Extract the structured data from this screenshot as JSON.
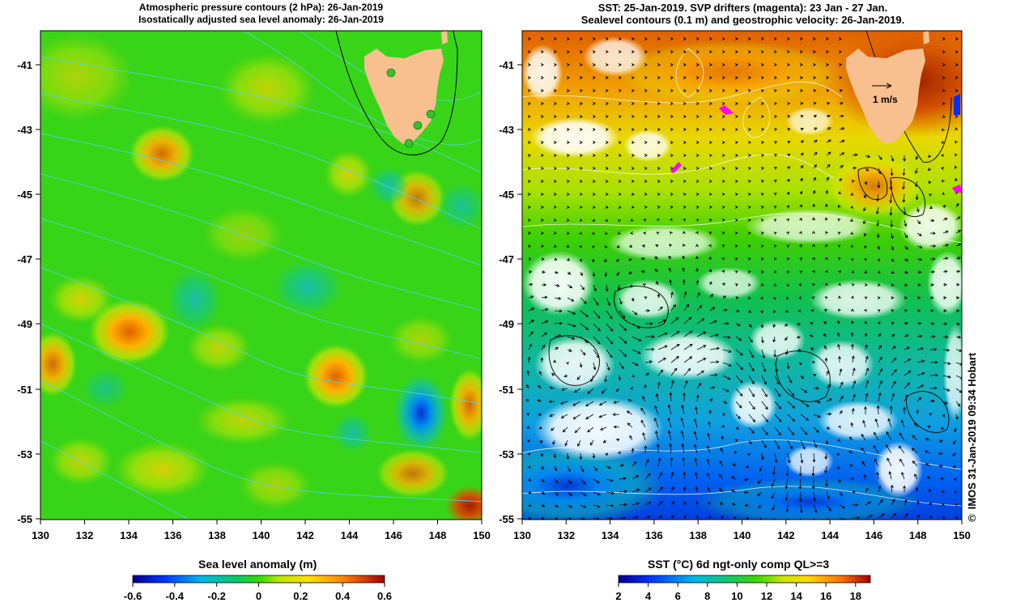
{
  "left_panel": {
    "title_line1": "Atmospheric pressure contours (2 hPa): 26-Jan-2019",
    "title_line2": "Isostatically adjusted sea level anomaly: 26-Jan-2019",
    "y_ticks": [
      "-41",
      "-43",
      "-45",
      "-47",
      "-49",
      "-51",
      "-53",
      "-55"
    ],
    "x_ticks": [
      "130",
      "132",
      "134",
      "136",
      "138",
      "140",
      "142",
      "144",
      "146",
      "148",
      "150"
    ],
    "colorbar": {
      "title": "Sea level anomaly (m)",
      "ticks": [
        "-0.6",
        "-0.4",
        "-0.2",
        "0",
        "0.2",
        "0.4",
        "0.6"
      ],
      "min": -0.6,
      "max": 0.6
    }
  },
  "right_panel": {
    "title_line1": "SST: 25-Jan-2019. SVP drifters (magenta): 23 Jan - 27 Jan.",
    "title_line2": "Sealevel contours (0.1 m) and geostrophic velocity: 26-Jan-2019.",
    "y_ticks": [
      "-41",
      "-43",
      "-45",
      "-47",
      "-49",
      "-51",
      "-53",
      "-55"
    ],
    "x_ticks": [
      "130",
      "132",
      "134",
      "136",
      "138",
      "140",
      "142",
      "144",
      "146",
      "148",
      "150"
    ],
    "velocity_scale_label": "1 m/s",
    "colorbar": {
      "title": "SST (°C) 6d ngt-only comp QL>=3",
      "ticks": [
        "2",
        "4",
        "6",
        "8",
        "10",
        "12",
        "14",
        "16",
        "18"
      ],
      "min": 2,
      "max": 19
    }
  },
  "map_extent": {
    "lon_min": 130,
    "lon_max": 150,
    "lat_min": -55,
    "lat_max": -40
  },
  "credit": {
    "copyright_symbol": "©",
    "text": "IMOS 31-Jan-2019 09:34 Hobart"
  },
  "colors": {
    "land": "#f8c08e",
    "drifter": "#ff00ff",
    "pressure_contour": "#50d8e0",
    "sst_contour": "#ffffff",
    "depth_contour": "#000000",
    "tide_gauge_marker": "#2ec42e"
  }
}
